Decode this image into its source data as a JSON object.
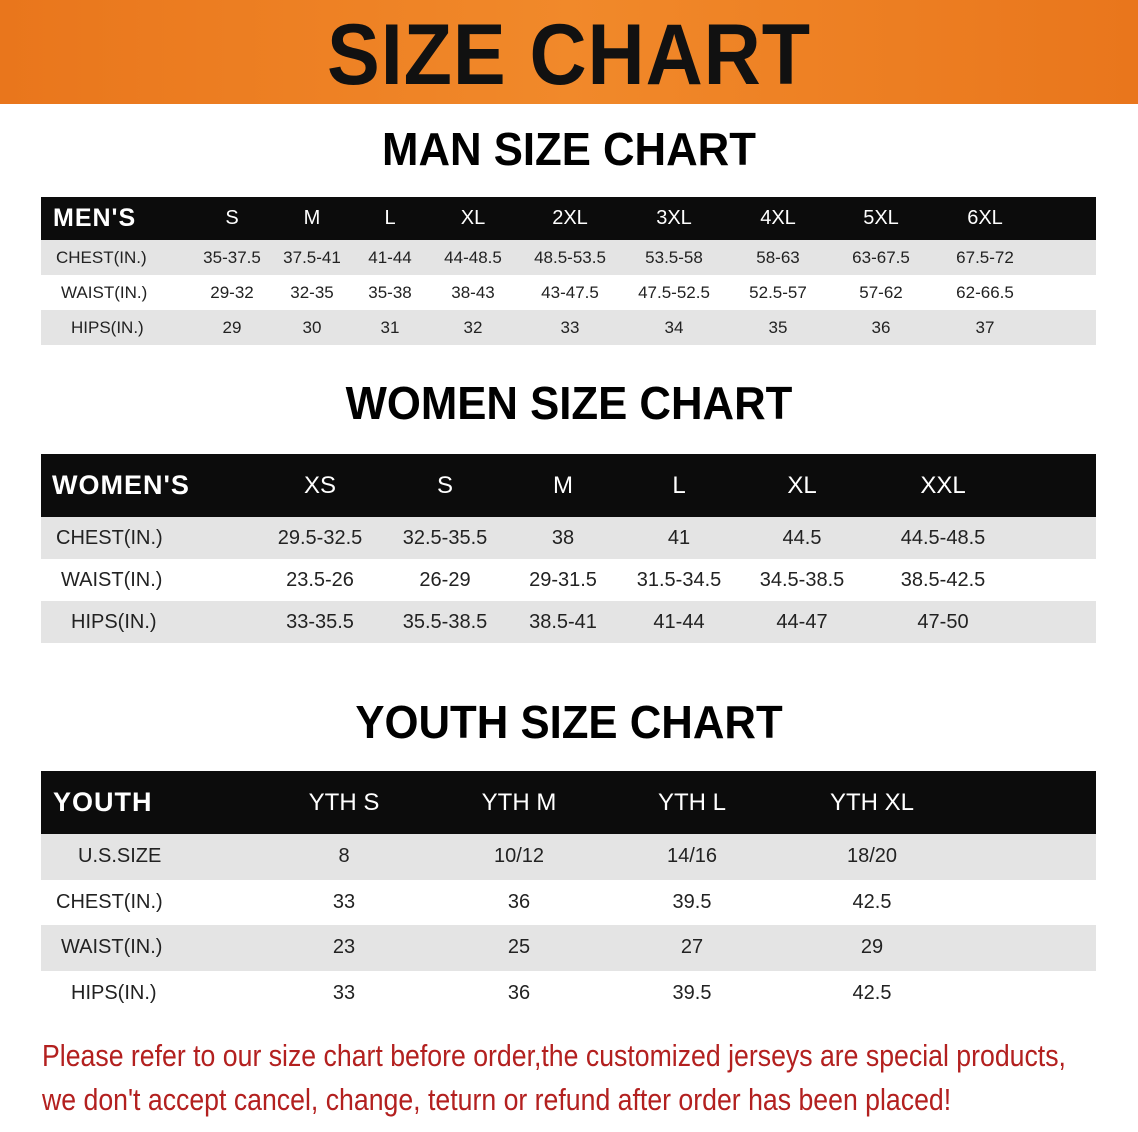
{
  "banner": {
    "title": "SIZE CHART",
    "color": "#ec7d22"
  },
  "men": {
    "title": "MAN SIZE CHART",
    "header": [
      "MEN'S",
      "S",
      "M",
      "L",
      "XL",
      "2XL",
      "3XL",
      "4XL",
      "5XL",
      "6XL"
    ],
    "rows": [
      [
        "CHEST(IN.)",
        "35-37.5",
        "37.5-41",
        "41-44",
        "44-48.5",
        "48.5-53.5",
        "53.5-58",
        "58-63",
        "63-67.5",
        "67.5-72"
      ],
      [
        "WAIST(IN.)",
        "29-32",
        "32-35",
        "35-38",
        "38-43",
        "43-47.5",
        "47.5-52.5",
        "52.5-57",
        "57-62",
        "62-66.5"
      ],
      [
        "HIPS(IN.)",
        "29",
        "30",
        "31",
        "32",
        "33",
        "34",
        "35",
        "36",
        "37"
      ]
    ]
  },
  "women": {
    "title": "WOMEN SIZE CHART",
    "header": [
      "WOMEN'S",
      "XS",
      "S",
      "M",
      "L",
      "XL",
      "XXL"
    ],
    "rows": [
      [
        "CHEST(IN.)",
        "29.5-32.5",
        "32.5-35.5",
        "38",
        "41",
        "44.5",
        "44.5-48.5"
      ],
      [
        "WAIST(IN.)",
        "23.5-26",
        "26-29",
        "29-31.5",
        "31.5-34.5",
        "34.5-38.5",
        "38.5-42.5"
      ],
      [
        "HIPS(IN.)",
        "33-35.5",
        "35.5-38.5",
        "38.5-41",
        "41-44",
        "44-47",
        "47-50"
      ]
    ]
  },
  "youth": {
    "title": "YOUTH SIZE CHART",
    "header": [
      "YOUTH",
      "YTH S",
      "YTH M",
      "YTH L",
      "YTH XL"
    ],
    "rows": [
      [
        "U.S.SIZE",
        "8",
        "10/12",
        "14/16",
        "18/20"
      ],
      [
        "CHEST(IN.)",
        "33",
        "36",
        "39.5",
        "42.5"
      ],
      [
        "WAIST(IN.)",
        "23",
        "25",
        "27",
        "29"
      ],
      [
        "HIPS(IN.)",
        "33",
        "36",
        "39.5",
        "42.5"
      ]
    ]
  },
  "notice": {
    "line1": "Please refer to our size chart before order,the customized jerseys are special products,",
    "line2": "we don't accept cancel, change, teturn or refund after order has been placed!",
    "color": "#b3201f"
  }
}
